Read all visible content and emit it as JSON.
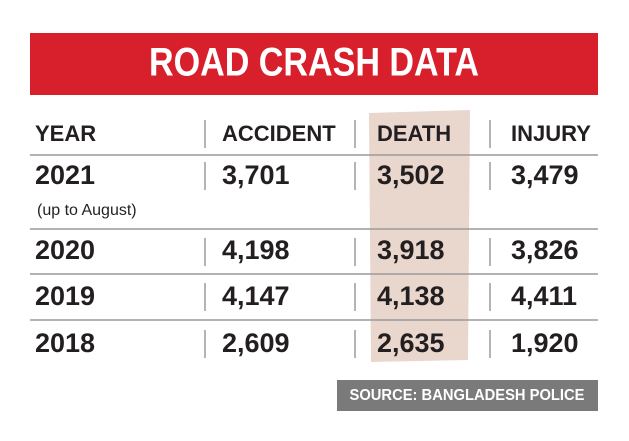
{
  "title": "ROAD CRASH DATA",
  "table": {
    "header": [
      "YEAR",
      "ACCIDENT",
      "DEATH",
      "INJURY"
    ],
    "rows": [
      {
        "year": "2021",
        "note": "(up to August)",
        "values": [
          "3,701",
          "3,502",
          "3,479"
        ]
      },
      {
        "year": "2020",
        "values": [
          "4,198",
          "3,918",
          "3,826"
        ]
      },
      {
        "year": "2019",
        "values": [
          "4,147",
          "4,138",
          "4,411"
        ]
      },
      {
        "year": "2018",
        "values": [
          "2,609",
          "2,635",
          "1,920"
        ]
      }
    ]
  },
  "source": "SOURCE: BANGLADESH POLICE"
}
